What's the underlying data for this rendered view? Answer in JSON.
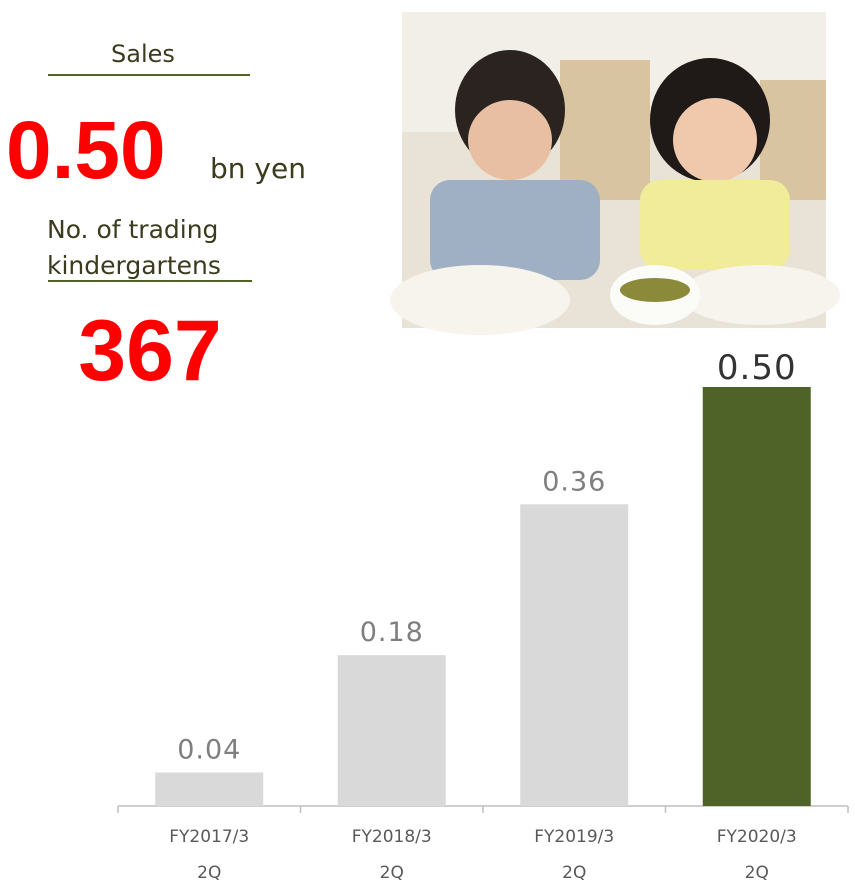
{
  "header": {
    "sales_label": "Sales",
    "sales_value": "0.50",
    "sales_unit": "bn yen",
    "count_label": [
      "No. of trading",
      "kindergartens"
    ],
    "count_value": 367
  },
  "chart_data": {
    "type": "bar",
    "categories": [
      [
        "FY2017/3",
        "2Q"
      ],
      [
        "FY2018/3",
        "2Q"
      ],
      [
        "FY2019/3",
        "2Q"
      ],
      [
        "FY2020/3",
        "2Q"
      ]
    ],
    "values": [
      0.04,
      0.18,
      0.36,
      0.5
    ],
    "value_labels": [
      "0.04",
      "0.18",
      "0.36",
      "0.50"
    ],
    "colors": [
      "#d9d9d9",
      "#d9d9d9",
      "#d9d9d9",
      "#4f6228"
    ],
    "ylim": [
      0,
      0.5
    ]
  }
}
